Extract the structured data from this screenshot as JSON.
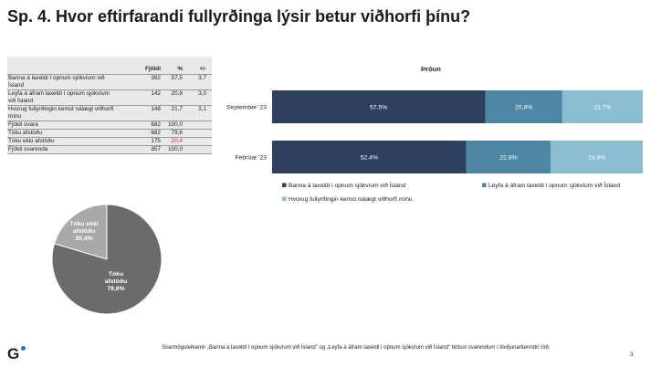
{
  "title": "Sp. 4. Hvor eftirfarandi fullyrðinga lýsir betur viðhorfi þínu?",
  "table": {
    "headers": {
      "label": "",
      "count": "Fjöldi",
      "pct": "%",
      "diff": "+/-"
    },
    "rows": [
      {
        "label": "Banna á laxeldi í opnum sjókvíum við Ísland",
        "count": "392",
        "pct": "57,5",
        "diff": "3,7"
      },
      {
        "label": "Leyfa á áfram laxeldi í opnum sjókvíum við Ísland",
        "count": "142",
        "pct": "20,8",
        "diff": "3,0"
      },
      {
        "label": "Hvorug fullyrðingin kemst nálægt viðhorfi mínu",
        "count": "148",
        "pct": "21,7",
        "diff": "3,1"
      },
      {
        "label": "Fjöldi svara",
        "count": "682",
        "pct": "100,0",
        "diff": ""
      },
      {
        "label": "Tóku afstöðu",
        "count": "682",
        "pct": "79,6",
        "diff": ""
      },
      {
        "label": "Tóku ekki afstöðu",
        "count": "175",
        "pct": "20,4",
        "diff": "",
        "highlight": true
      },
      {
        "label": "Fjöldi svarenda",
        "count": "857",
        "pct": "100,0",
        "diff": ""
      }
    ]
  },
  "chart_data": [
    {
      "type": "bar",
      "orientation": "horizontal-stacked",
      "title": "Þróun",
      "categories": [
        "September '23",
        "Febrúar '23"
      ],
      "series": [
        {
          "name": "Banna á laxeldi í opnum sjókvíum við Ísland",
          "values": [
            57.5,
            52.4
          ],
          "labels": [
            "57,5%",
            "52,4%"
          ],
          "color": "#2e3f5f"
        },
        {
          "name": "Leyfa á áfram laxeldi í opnum sjókvíum við Ísland",
          "values": [
            20.8,
            22.8
          ],
          "labels": [
            "20,8%",
            "22,8%"
          ],
          "color": "#4e87a4"
        },
        {
          "name": "Hvorug fullyrðingin kemst nálægt viðhorfi mínu",
          "values": [
            21.7,
            24.8
          ],
          "labels": [
            "21,7%",
            "24,8%"
          ],
          "color": "#8bbdd2"
        }
      ],
      "xlim": [
        0,
        100
      ],
      "legend": "bottom"
    },
    {
      "type": "pie",
      "slices": [
        {
          "name": "Tóku afstöðu",
          "value": 79.6,
          "label": "79,6%",
          "color": "#6b6b6b"
        },
        {
          "name": "Tóku ekki afstöðu",
          "value": 20.4,
          "label": "20,4%",
          "color": "#a9a9a9"
        }
      ]
    }
  ],
  "footnote": "Svarmöguleikarnir „Banna á laxeldi í opnum sjókvíum við Ísland\" og „Leyfa á áfram laxeldi í opnum sjókvíum við Ísland\" birtust svarendum í tilviljunarkenndri röð.",
  "logo": "G",
  "page_number": "3"
}
